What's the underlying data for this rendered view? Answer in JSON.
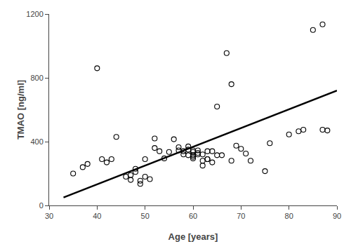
{
  "chart_data": {
    "type": "scatter",
    "xlabel": "Age [years]",
    "ylabel": "TMAO [ng/ml]",
    "xlim": [
      30,
      90
    ],
    "ylim": [
      0,
      1200
    ],
    "xticks": [
      30,
      40,
      50,
      60,
      70,
      80,
      90
    ],
    "yticks": [
      0,
      400,
      800,
      1200
    ],
    "grid": false,
    "series": [
      {
        "type": "scatter",
        "marker": "circle-open",
        "color": "#000000",
        "x": [
          35,
          37,
          38,
          40,
          41,
          42,
          43,
          44,
          46,
          47,
          47,
          48,
          48,
          49,
          49,
          50,
          50,
          51,
          52,
          52,
          53,
          54,
          55,
          56,
          57,
          57,
          58,
          58,
          59,
          59,
          59,
          60,
          60,
          60,
          60,
          60,
          61,
          61,
          61,
          62,
          62,
          62,
          63,
          63,
          63,
          64,
          64,
          65,
          65,
          66,
          67,
          68,
          68,
          69,
          70,
          71,
          72,
          75,
          76,
          80,
          82,
          83,
          85,
          87,
          87,
          88
        ],
        "values": [
          200,
          240,
          260,
          860,
          290,
          270,
          290,
          430,
          180,
          160,
          190,
          230,
          210,
          155,
          135,
          180,
          290,
          165,
          420,
          360,
          340,
          295,
          335,
          415,
          365,
          345,
          340,
          320,
          315,
          350,
          370,
          315,
          295,
          305,
          335,
          345,
          320,
          330,
          345,
          320,
          280,
          250,
          290,
          290,
          340,
          270,
          340,
          620,
          315,
          315,
          955,
          760,
          280,
          375,
          355,
          325,
          280,
          215,
          390,
          445,
          465,
          475,
          1100,
          1135,
          475,
          470
        ]
      },
      {
        "type": "line",
        "line_style": "solid",
        "color": "#000000",
        "x": [
          33,
          90
        ],
        "values": [
          50,
          720
        ]
      }
    ]
  }
}
